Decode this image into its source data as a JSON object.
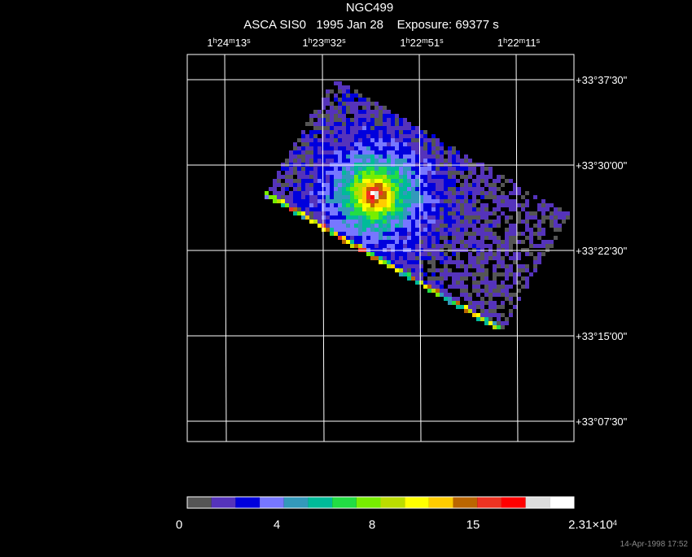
{
  "header": {
    "title": "NGC499",
    "subtitle": "ASCA SIS0   1995 Jan 28    Exposure: 69377 s"
  },
  "ra_labels": [
    [
      "1",
      "h",
      "24",
      "m",
      "13",
      "s"
    ],
    [
      "1",
      "h",
      "23",
      "m",
      "32",
      "s"
    ],
    [
      "1",
      "h",
      "22",
      "m",
      "51",
      "s"
    ],
    [
      "1",
      "h",
      "22",
      "m",
      "11",
      "s"
    ]
  ],
  "dec_labels": [
    "+33°37'30\"",
    "+33°30'00\"",
    "+33°22'30\"",
    "+33°15'00\"",
    "+33°07'30\""
  ],
  "colorbar": {
    "colors": [
      "#555555",
      "#5533bb",
      "#0000dd",
      "#7777ff",
      "#3399bb",
      "#00bb99",
      "#22dd44",
      "#77ee00",
      "#bbdd00",
      "#ffff00",
      "#ffcc00",
      "#bb6600",
      "#ee3322",
      "#ff0000",
      "#dddddd",
      "#ffffff"
    ],
    "labels": [
      [
        "0"
      ],
      [
        "4"
      ],
      [
        "8"
      ],
      [
        "15"
      ],
      [
        "2.31×10",
        "4"
      ]
    ]
  },
  "footer": {
    "timestamp": "14-Apr-1998 17:52"
  }
}
